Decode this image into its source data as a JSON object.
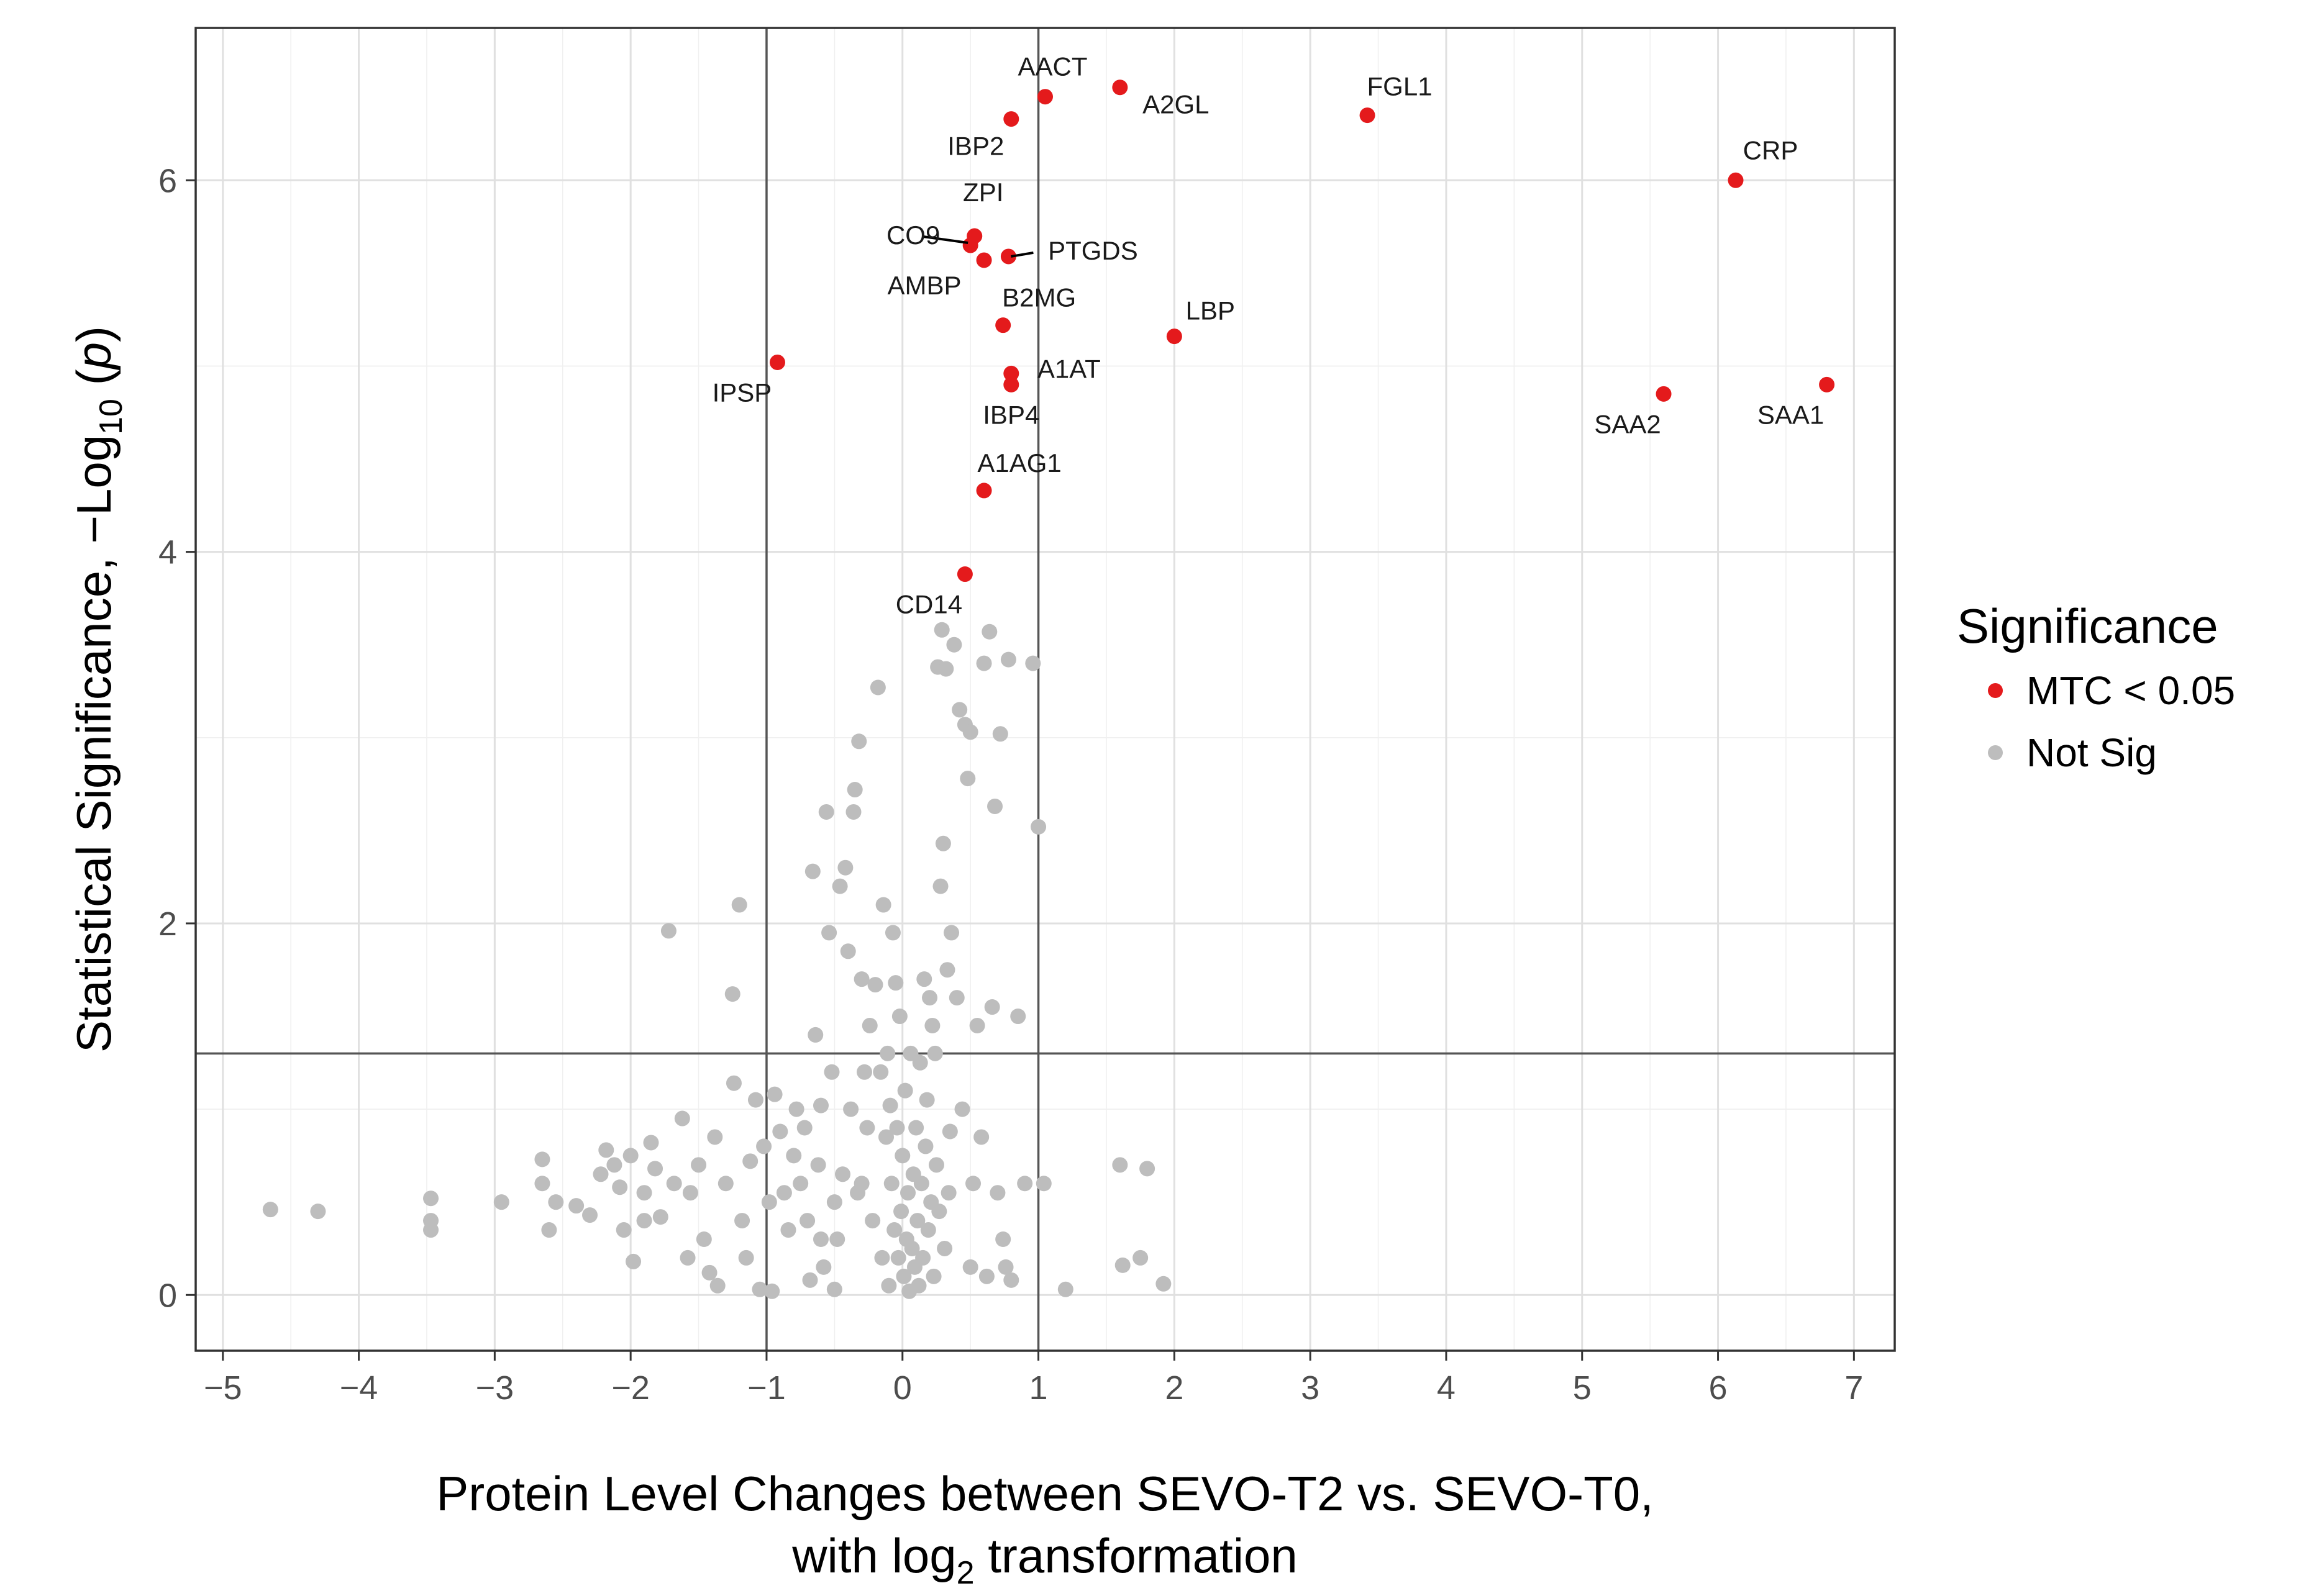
{
  "chart_data": {
    "type": "scatter",
    "title": "",
    "xlabel": {
      "line1": "Protein Level Changes between SEVO-T2 vs. SEVO-T0,",
      "line2_prefix": "with log",
      "line2_sub": "2",
      "line2_suffix": " transformation"
    },
    "ylabel": {
      "prefix": "Statistical  Significance,  −Log",
      "sub": "10",
      "open": " (",
      "italic": "p",
      "close": ")"
    },
    "xlim": [
      -5.2,
      7.3
    ],
    "ylim": [
      -0.3,
      6.82
    ],
    "xticks": [
      -5,
      -4,
      -3,
      -2,
      -1,
      0,
      1,
      2,
      3,
      4,
      5,
      6,
      7
    ],
    "xtick_labels": [
      "−5",
      "−4",
      "−3",
      "−2",
      "−1",
      "0",
      "1",
      "2",
      "3",
      "4",
      "5",
      "6",
      "7"
    ],
    "yticks": [
      0,
      2,
      4,
      6
    ],
    "ytick_labels": [
      "0",
      "2",
      "4",
      "6"
    ],
    "reference_lines": {
      "vertical": [
        -1,
        1
      ],
      "horizontal": [
        1.3
      ]
    },
    "legend": {
      "title": "Significance",
      "position": "right",
      "entries": [
        {
          "label": "MTC < 0.05",
          "color": "#e41a1c"
        },
        {
          "label": "Not Sig",
          "color": "#bdbdbd"
        }
      ]
    },
    "series": [
      {
        "name": "MTC < 0.05",
        "color": "#e41a1c",
        "points": [
          {
            "x": 1.05,
            "y": 6.45,
            "label": "AACT"
          },
          {
            "x": 1.6,
            "y": 6.5,
            "label": "A2GL"
          },
          {
            "x": 0.8,
            "y": 6.33,
            "label": "IBP2"
          },
          {
            "x": 3.42,
            "y": 6.35,
            "label": "FGL1"
          },
          {
            "x": 6.13,
            "y": 6.0,
            "label": "CRP"
          },
          {
            "x": 0.53,
            "y": 5.7,
            "label": "ZPI"
          },
          {
            "x": 0.5,
            "y": 5.65,
            "label": "CO9"
          },
          {
            "x": 0.6,
            "y": 5.57,
            "label": "AMBP"
          },
          {
            "x": 0.78,
            "y": 5.59,
            "label": "PTGDS"
          },
          {
            "x": 0.74,
            "y": 5.22,
            "label": "B2MG"
          },
          {
            "x": 2.0,
            "y": 5.16,
            "label": "LBP"
          },
          {
            "x": -0.92,
            "y": 5.02,
            "label": "IPSP"
          },
          {
            "x": 0.8,
            "y": 4.96,
            "label": "A1AT"
          },
          {
            "x": 0.8,
            "y": 4.9,
            "label": "IBP4"
          },
          {
            "x": 5.6,
            "y": 4.85,
            "label": "SAA2"
          },
          {
            "x": 6.8,
            "y": 4.9,
            "label": "SAA1"
          },
          {
            "x": 0.6,
            "y": 4.33,
            "label": "A1AG1"
          },
          {
            "x": 0.46,
            "y": 3.88,
            "label": "CD14"
          }
        ]
      },
      {
        "name": "Not Sig",
        "color": "#bdbdbd",
        "points": [
          {
            "x": -4.65,
            "y": 0.46
          },
          {
            "x": -4.3,
            "y": 0.45
          },
          {
            "x": -3.47,
            "y": 0.52
          },
          {
            "x": -3.47,
            "y": 0.4
          },
          {
            "x": -3.47,
            "y": 0.35
          },
          {
            "x": -2.95,
            "y": 0.5
          },
          {
            "x": -2.65,
            "y": 0.73
          },
          {
            "x": -2.65,
            "y": 0.6
          },
          {
            "x": -2.55,
            "y": 0.5
          },
          {
            "x": -2.4,
            "y": 0.48
          },
          {
            "x": -2.3,
            "y": 0.43
          },
          {
            "x": -2.22,
            "y": 0.65
          },
          {
            "x": -2.18,
            "y": 0.78
          },
          {
            "x": -2.12,
            "y": 0.7
          },
          {
            "x": -2.08,
            "y": 0.58
          },
          {
            "x": -2.05,
            "y": 0.35
          },
          {
            "x": -2.0,
            "y": 0.75
          },
          {
            "x": -1.98,
            "y": 0.18
          },
          {
            "x": -1.9,
            "y": 0.4
          },
          {
            "x": -1.85,
            "y": 0.82
          },
          {
            "x": -1.82,
            "y": 0.68
          },
          {
            "x": -1.78,
            "y": 0.42
          },
          {
            "x": -1.72,
            "y": 1.96
          },
          {
            "x": -1.68,
            "y": 0.6
          },
          {
            "x": -1.62,
            "y": 0.95
          },
          {
            "x": -1.56,
            "y": 0.55
          },
          {
            "x": -1.5,
            "y": 0.7
          },
          {
            "x": -1.46,
            "y": 0.3
          },
          {
            "x": -1.42,
            "y": 0.12
          },
          {
            "x": -1.38,
            "y": 0.85
          },
          {
            "x": -1.36,
            "y": 0.05
          },
          {
            "x": -1.3,
            "y": 0.6
          },
          {
            "x": -1.25,
            "y": 1.62
          },
          {
            "x": -1.24,
            "y": 1.14
          },
          {
            "x": -1.2,
            "y": 2.1
          },
          {
            "x": -1.18,
            "y": 0.4
          },
          {
            "x": -1.15,
            "y": 0.2
          },
          {
            "x": -1.12,
            "y": 0.72
          },
          {
            "x": -1.08,
            "y": 1.05
          },
          {
            "x": -1.05,
            "y": 0.03
          },
          {
            "x": -1.02,
            "y": 0.8
          },
          {
            "x": -0.98,
            "y": 0.5
          },
          {
            "x": -0.96,
            "y": 0.02
          },
          {
            "x": -0.94,
            "y": 1.08
          },
          {
            "x": -0.9,
            "y": 0.88
          },
          {
            "x": -0.87,
            "y": 0.55
          },
          {
            "x": -0.84,
            "y": 0.35
          },
          {
            "x": -0.8,
            "y": 0.75
          },
          {
            "x": -0.78,
            "y": 1.0
          },
          {
            "x": -0.75,
            "y": 0.6
          },
          {
            "x": -0.72,
            "y": 0.9
          },
          {
            "x": -0.7,
            "y": 0.4
          },
          {
            "x": -0.68,
            "y": 0.08
          },
          {
            "x": -0.66,
            "y": 2.28
          },
          {
            "x": -0.64,
            "y": 1.4
          },
          {
            "x": -0.62,
            "y": 0.7
          },
          {
            "x": -0.6,
            "y": 0.3
          },
          {
            "x": -0.58,
            "y": 0.15
          },
          {
            "x": -0.56,
            "y": 2.6
          },
          {
            "x": -0.54,
            "y": 1.95
          },
          {
            "x": -0.52,
            "y": 1.2
          },
          {
            "x": -0.5,
            "y": 0.5
          },
          {
            "x": -0.48,
            "y": 0.3
          },
          {
            "x": -0.46,
            "y": 2.2
          },
          {
            "x": -0.44,
            "y": 0.65
          },
          {
            "x": -0.42,
            "y": 2.3
          },
          {
            "x": -0.4,
            "y": 1.85
          },
          {
            "x": -0.38,
            "y": 1.0
          },
          {
            "x": -0.36,
            "y": 2.6
          },
          {
            "x": -0.35,
            "y": 2.72
          },
          {
            "x": -0.33,
            "y": 0.55
          },
          {
            "x": -0.32,
            "y": 2.98
          },
          {
            "x": -0.3,
            "y": 1.7
          },
          {
            "x": -0.28,
            "y": 1.2
          },
          {
            "x": -0.26,
            "y": 0.9
          },
          {
            "x": -0.24,
            "y": 1.45
          },
          {
            "x": -0.22,
            "y": 0.4
          },
          {
            "x": -0.2,
            "y": 1.67
          },
          {
            "x": -0.18,
            "y": 3.27
          },
          {
            "x": -0.16,
            "y": 1.2
          },
          {
            "x": -0.15,
            "y": 0.2
          },
          {
            "x": -0.14,
            "y": 2.1
          },
          {
            "x": -0.12,
            "y": 0.85
          },
          {
            "x": -0.11,
            "y": 1.3
          },
          {
            "x": -0.1,
            "y": 0.05
          },
          {
            "x": -0.09,
            "y": 1.02
          },
          {
            "x": -0.08,
            "y": 0.6
          },
          {
            "x": -0.07,
            "y": 1.95
          },
          {
            "x": -0.06,
            "y": 0.35
          },
          {
            "x": -0.05,
            "y": 1.68
          },
          {
            "x": -0.04,
            "y": 0.9
          },
          {
            "x": -0.03,
            "y": 0.2
          },
          {
            "x": -0.02,
            "y": 1.5
          },
          {
            "x": -0.01,
            "y": 0.45
          },
          {
            "x": 0.0,
            "y": 0.75
          },
          {
            "x": 0.01,
            "y": 0.1
          },
          {
            "x": 0.02,
            "y": 1.1
          },
          {
            "x": 0.03,
            "y": 0.3
          },
          {
            "x": 0.04,
            "y": 0.55
          },
          {
            "x": 0.05,
            "y": 0.02
          },
          {
            "x": 0.06,
            "y": 1.3
          },
          {
            "x": 0.07,
            "y": 0.25
          },
          {
            "x": 0.08,
            "y": 0.65
          },
          {
            "x": 0.09,
            "y": 0.15
          },
          {
            "x": 0.1,
            "y": 0.9
          },
          {
            "x": 0.11,
            "y": 0.4
          },
          {
            "x": 0.12,
            "y": 0.05
          },
          {
            "x": 0.13,
            "y": 1.25
          },
          {
            "x": 0.14,
            "y": 0.6
          },
          {
            "x": 0.15,
            "y": 0.2
          },
          {
            "x": 0.16,
            "y": 1.7
          },
          {
            "x": 0.17,
            "y": 0.8
          },
          {
            "x": 0.18,
            "y": 1.05
          },
          {
            "x": 0.19,
            "y": 0.35
          },
          {
            "x": 0.2,
            "y": 1.6
          },
          {
            "x": 0.21,
            "y": 0.5
          },
          {
            "x": 0.22,
            "y": 1.45
          },
          {
            "x": 0.23,
            "y": 0.1
          },
          {
            "x": 0.24,
            "y": 1.3
          },
          {
            "x": 0.25,
            "y": 0.7
          },
          {
            "x": 0.26,
            "y": 3.38
          },
          {
            "x": 0.27,
            "y": 0.45
          },
          {
            "x": 0.28,
            "y": 2.2
          },
          {
            "x": 0.29,
            "y": 3.58
          },
          {
            "x": 0.3,
            "y": 2.43
          },
          {
            "x": 0.31,
            "y": 0.25
          },
          {
            "x": 0.32,
            "y": 3.37
          },
          {
            "x": 0.33,
            "y": 1.75
          },
          {
            "x": 0.34,
            "y": 0.55
          },
          {
            "x": 0.36,
            "y": 1.95
          },
          {
            "x": 0.38,
            "y": 3.5
          },
          {
            "x": 0.4,
            "y": 1.6
          },
          {
            "x": 0.42,
            "y": 3.15
          },
          {
            "x": 0.44,
            "y": 1.0
          },
          {
            "x": 0.46,
            "y": 3.07
          },
          {
            "x": 0.48,
            "y": 2.78
          },
          {
            "x": 0.5,
            "y": 3.03
          },
          {
            "x": 0.52,
            "y": 0.6
          },
          {
            "x": 0.55,
            "y": 1.45
          },
          {
            "x": 0.58,
            "y": 0.85
          },
          {
            "x": 0.6,
            "y": 3.4
          },
          {
            "x": 0.62,
            "y": 0.1
          },
          {
            "x": 0.64,
            "y": 3.57
          },
          {
            "x": 0.66,
            "y": 1.55
          },
          {
            "x": 0.68,
            "y": 2.63
          },
          {
            "x": 0.7,
            "y": 0.55
          },
          {
            "x": 0.72,
            "y": 3.02
          },
          {
            "x": 0.74,
            "y": 0.3
          },
          {
            "x": 0.76,
            "y": 0.15
          },
          {
            "x": 0.78,
            "y": 3.42
          },
          {
            "x": 0.8,
            "y": 0.08
          },
          {
            "x": 0.85,
            "y": 1.5
          },
          {
            "x": 0.9,
            "y": 0.6
          },
          {
            "x": 0.96,
            "y": 3.4
          },
          {
            "x": 1.0,
            "y": 2.52
          },
          {
            "x": 1.04,
            "y": 0.6
          },
          {
            "x": 1.2,
            "y": 0.03
          },
          {
            "x": 1.6,
            "y": 0.7
          },
          {
            "x": 1.62,
            "y": 0.16
          },
          {
            "x": 1.75,
            "y": 0.2
          },
          {
            "x": 1.8,
            "y": 0.68
          },
          {
            "x": 1.92,
            "y": 0.06
          },
          {
            "x": -0.6,
            "y": 1.02
          },
          {
            "x": -0.5,
            "y": 0.03
          },
          {
            "x": -0.3,
            "y": 0.6
          },
          {
            "x": 0.35,
            "y": 0.88
          },
          {
            "x": 0.5,
            "y": 0.15
          },
          {
            "x": -1.58,
            "y": 0.2
          },
          {
            "x": -1.9,
            "y": 0.55
          },
          {
            "x": -2.6,
            "y": 0.35
          }
        ]
      }
    ]
  }
}
